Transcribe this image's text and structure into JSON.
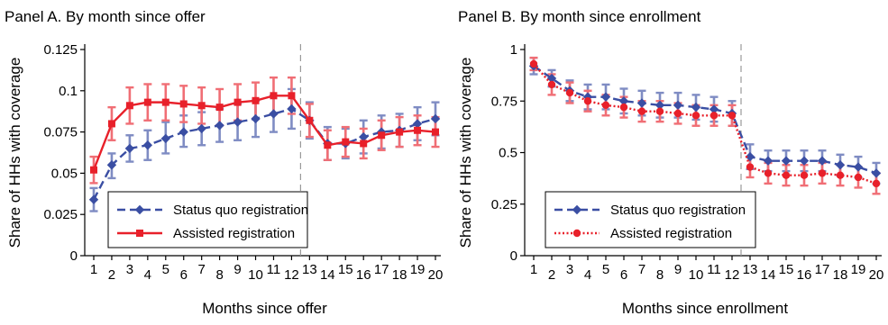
{
  "chart_data": [
    {
      "type": "line",
      "title": "Panel A. By month since offer",
      "xlabel": "Months since offer",
      "ylabel": "Share of HHs with coverage",
      "xlim": [
        1,
        20
      ],
      "ylim": [
        0,
        0.125
      ],
      "x": [
        1,
        2,
        3,
        4,
        5,
        6,
        7,
        8,
        9,
        10,
        11,
        12,
        13,
        14,
        15,
        16,
        17,
        18,
        19,
        20
      ],
      "x_tick_labels": [
        "1",
        "2",
        "3",
        "4",
        "5",
        "6",
        "7",
        "8",
        "9",
        "10",
        "11",
        "12",
        "13",
        "14",
        "15",
        "16",
        "17",
        "18",
        "19",
        "20"
      ],
      "y_ticks": [
        0,
        0.025,
        0.05,
        0.075,
        0.1,
        0.125
      ],
      "y_tick_labels": [
        "0",
        "0.025",
        "0.05",
        "0.075",
        "0.1",
        "0.125"
      ],
      "vline_x": 12.5,
      "legend_position": "bottom-left",
      "series": [
        {
          "name": "Status quo registration",
          "color": "#3a4ea3",
          "marker": "diamond",
          "line_style": "dashed",
          "values": [
            0.034,
            0.055,
            0.065,
            0.067,
            0.071,
            0.075,
            0.077,
            0.079,
            0.081,
            0.083,
            0.086,
            0.089,
            0.082,
            0.068,
            0.068,
            0.072,
            0.075,
            0.076,
            0.08,
            0.083
          ],
          "ci_low": [
            0.027,
            0.047,
            0.057,
            0.058,
            0.062,
            0.066,
            0.067,
            0.069,
            0.07,
            0.072,
            0.075,
            0.077,
            0.071,
            0.058,
            0.059,
            0.062,
            0.065,
            0.066,
            0.07,
            0.073
          ],
          "ci_high": [
            0.041,
            0.062,
            0.073,
            0.076,
            0.081,
            0.085,
            0.087,
            0.089,
            0.092,
            0.094,
            0.097,
            0.101,
            0.093,
            0.078,
            0.077,
            0.082,
            0.085,
            0.086,
            0.09,
            0.093
          ]
        },
        {
          "name": "Assisted registration",
          "color": "#e8202a",
          "marker": "square",
          "line_style": "solid",
          "values": [
            0.052,
            0.08,
            0.091,
            0.093,
            0.093,
            0.092,
            0.091,
            0.09,
            0.093,
            0.094,
            0.097,
            0.097,
            0.082,
            0.067,
            0.069,
            0.068,
            0.073,
            0.075,
            0.076,
            0.075
          ],
          "ci_low": [
            0.044,
            0.07,
            0.08,
            0.082,
            0.082,
            0.081,
            0.08,
            0.079,
            0.082,
            0.083,
            0.086,
            0.086,
            0.072,
            0.058,
            0.06,
            0.059,
            0.064,
            0.066,
            0.067,
            0.066
          ],
          "ci_high": [
            0.06,
            0.09,
            0.102,
            0.104,
            0.104,
            0.103,
            0.102,
            0.101,
            0.104,
            0.105,
            0.108,
            0.108,
            0.092,
            0.076,
            0.078,
            0.077,
            0.082,
            0.084,
            0.085,
            0.084
          ]
        }
      ]
    },
    {
      "type": "line",
      "title": "Panel B. By month since enrollment",
      "xlabel": "Months since enrollment",
      "ylabel": "Share of HHs with coverage",
      "xlim": [
        1,
        20
      ],
      "ylim": [
        0,
        1
      ],
      "x": [
        1,
        2,
        3,
        4,
        5,
        6,
        7,
        8,
        9,
        10,
        11,
        12,
        13,
        14,
        15,
        16,
        17,
        18,
        19,
        20
      ],
      "x_tick_labels": [
        "1",
        "2",
        "3",
        "4",
        "5",
        "6",
        "7",
        "8",
        "9",
        "10",
        "11",
        "12",
        "13",
        "14",
        "15",
        "16",
        "17",
        "18",
        "19",
        "20"
      ],
      "y_ticks": [
        0,
        0.25,
        0.5,
        0.75,
        1
      ],
      "y_tick_labels": [
        "0",
        "0.25",
        "0.5",
        "0.75",
        "1"
      ],
      "vline_x": 12.5,
      "legend_position": "bottom-left",
      "series": [
        {
          "name": "Status quo registration",
          "color": "#3a4ea3",
          "marker": "diamond",
          "line_style": "dashed",
          "values": [
            0.92,
            0.86,
            0.8,
            0.77,
            0.77,
            0.75,
            0.74,
            0.73,
            0.73,
            0.72,
            0.71,
            0.69,
            0.48,
            0.46,
            0.46,
            0.46,
            0.46,
            0.44,
            0.43,
            0.4
          ],
          "ci_low": [
            0.88,
            0.82,
            0.75,
            0.71,
            0.71,
            0.69,
            0.68,
            0.67,
            0.67,
            0.66,
            0.65,
            0.63,
            0.42,
            0.41,
            0.41,
            0.41,
            0.41,
            0.39,
            0.38,
            0.35
          ],
          "ci_high": [
            0.96,
            0.9,
            0.85,
            0.83,
            0.83,
            0.81,
            0.8,
            0.79,
            0.79,
            0.78,
            0.77,
            0.75,
            0.54,
            0.51,
            0.51,
            0.51,
            0.51,
            0.49,
            0.48,
            0.45
          ]
        },
        {
          "name": "Assisted registration",
          "color": "#e8202a",
          "marker": "circle",
          "line_style": "dotted",
          "values": [
            0.93,
            0.83,
            0.79,
            0.75,
            0.73,
            0.72,
            0.7,
            0.7,
            0.69,
            0.68,
            0.68,
            0.68,
            0.43,
            0.4,
            0.39,
            0.39,
            0.4,
            0.39,
            0.38,
            0.35
          ],
          "ci_low": [
            0.9,
            0.78,
            0.74,
            0.7,
            0.68,
            0.67,
            0.65,
            0.65,
            0.64,
            0.63,
            0.63,
            0.63,
            0.38,
            0.35,
            0.34,
            0.34,
            0.35,
            0.34,
            0.33,
            0.3
          ],
          "ci_high": [
            0.96,
            0.88,
            0.84,
            0.8,
            0.78,
            0.77,
            0.75,
            0.75,
            0.74,
            0.73,
            0.73,
            0.73,
            0.48,
            0.45,
            0.44,
            0.44,
            0.45,
            0.44,
            0.43,
            0.4
          ]
        }
      ]
    }
  ]
}
